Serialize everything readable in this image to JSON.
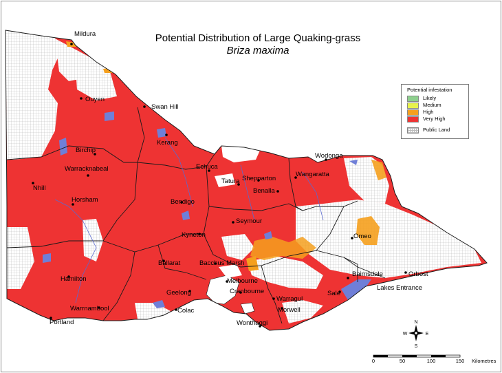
{
  "map": {
    "title": "Potential Distribution of Large Quaking-grass",
    "subtitle": "Briza maxima",
    "towns": [
      {
        "name": "Mildura"
      },
      {
        "name": "Ouyen"
      },
      {
        "name": "Swan Hill"
      },
      {
        "name": "Kerang"
      },
      {
        "name": "Birchip"
      },
      {
        "name": "Warracknabeal"
      },
      {
        "name": "Nhill"
      },
      {
        "name": "Horsham"
      },
      {
        "name": "Echuca"
      },
      {
        "name": "Tatura"
      },
      {
        "name": "Shepparton"
      },
      {
        "name": "Benalla"
      },
      {
        "name": "Wodonga"
      },
      {
        "name": "Wangaratta"
      },
      {
        "name": "Bendigo"
      },
      {
        "name": "Seymour"
      },
      {
        "name": "Kyneton"
      },
      {
        "name": "Omeo"
      },
      {
        "name": "Ballarat"
      },
      {
        "name": "Bacchus Marsh"
      },
      {
        "name": "Hamilton"
      },
      {
        "name": "Melbourne"
      },
      {
        "name": "Geelong"
      },
      {
        "name": "Cranbourne"
      },
      {
        "name": "Warragul"
      },
      {
        "name": "Sale"
      },
      {
        "name": "Bairnsdale"
      },
      {
        "name": "Orbost"
      },
      {
        "name": "Lakes Entrance"
      },
      {
        "name": "Warrnambool"
      },
      {
        "name": "Colac"
      },
      {
        "name": "Portland"
      },
      {
        "name": "Wonthaggi"
      },
      {
        "name": "Morwell"
      }
    ],
    "legend": {
      "title": "Potential infestation",
      "items": [
        {
          "label": "Likely",
          "color": "#8ed08e"
        },
        {
          "label": "Medium",
          "color": "#e8f24c"
        },
        {
          "label": "High",
          "color": "#f5a01e"
        },
        {
          "label": "Very High",
          "color": "#ee3333"
        },
        {
          "label": "Public Land",
          "color": "#ffffff"
        }
      ]
    },
    "north_arrow": {
      "n": "N",
      "s": "S",
      "e": "E",
      "w": "W"
    },
    "scale_bar": {
      "ticks": [
        "0",
        "50",
        "100",
        "150"
      ],
      "unit": "Kilometres"
    },
    "colors": {
      "very_high": "#ee3333",
      "high": "#f5a01e",
      "medium": "#e8f24c",
      "likely": "#8ed08e",
      "water": "#6f7fd8",
      "boundary": "#1a1a1a"
    }
  }
}
